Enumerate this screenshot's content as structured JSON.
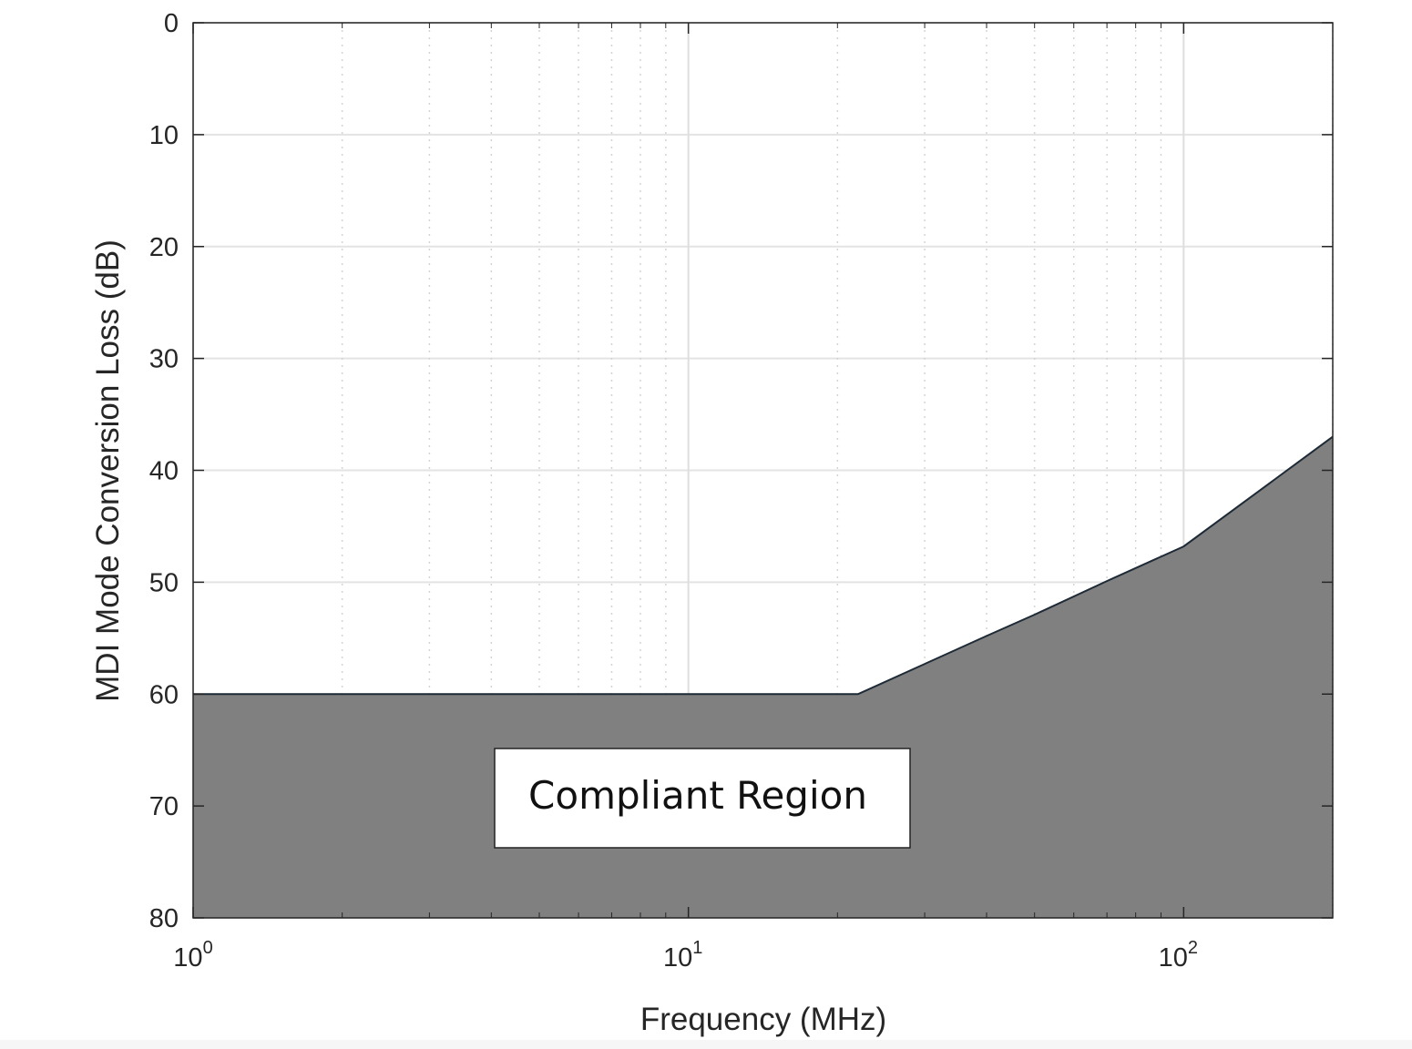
{
  "chart_data": {
    "type": "area",
    "title": "",
    "xlabel": "Frequency (MHz)",
    "ylabel": "MDI Mode Conversion Loss (dB)",
    "xscale": "log",
    "xlim": [
      1,
      200
    ],
    "ylim": [
      0,
      80
    ],
    "y_reversed": true,
    "grid": true,
    "x_ticks": [
      {
        "base": "10",
        "exp": "0",
        "value": 1
      },
      {
        "base": "10",
        "exp": "1",
        "value": 10
      },
      {
        "base": "10",
        "exp": "2",
        "value": 100
      }
    ],
    "y_ticks": [
      "0",
      "10",
      "20",
      "30",
      "40",
      "50",
      "60",
      "70",
      "80"
    ],
    "series": [
      {
        "x": [
          1,
          22,
          30,
          40,
          50,
          70,
          100,
          200
        ],
        "y": [
          60,
          60,
          57.3,
          54.8,
          52.9,
          49.9,
          46.8,
          37
        ],
        "fill_to": 80,
        "fill_color": "#7f807f",
        "line_color": "#1e2a36"
      }
    ],
    "annotations": [
      {
        "text": "Compliant Region",
        "x": 15,
        "y": 69
      }
    ]
  }
}
